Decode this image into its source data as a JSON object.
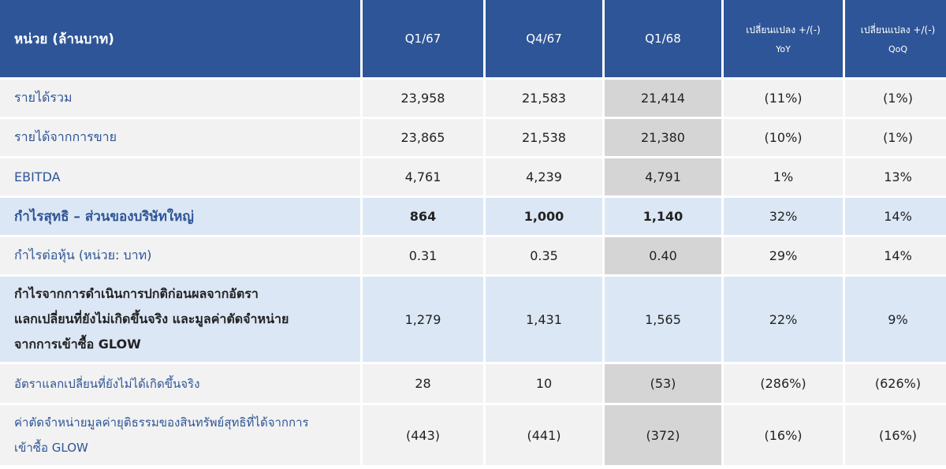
{
  "header": {
    "label": "หน่วย (ล้านบาท)",
    "col1": "Q1/67",
    "col2": "Q4/67",
    "col3": "Q1/68",
    "col4_main": "เปลี่ยนแปลง +/(-)",
    "col4_sub": "YoY",
    "col5_main": "เปลี่ยนแปลง +/(-)",
    "col5_sub": "QoQ"
  },
  "rows": [
    {
      "label": "รายได้รวม",
      "q167": "23,958",
      "q467": "21,583",
      "q168": "21,414",
      "yoy": "(11%)",
      "qoq": "(1%)"
    },
    {
      "label": "รายได้จากการขาย",
      "q167": "23,865",
      "q467": "21,538",
      "q168": "21,380",
      "yoy": "(10%)",
      "qoq": "(1%)"
    },
    {
      "label": "EBITDA",
      "q167": "4,761",
      "q467": "4,239",
      "q168": "4,791",
      "yoy": "1%",
      "qoq": "13%"
    },
    {
      "label": "กำไรสุทธิ – ส่วนของบริษัทใหญ่",
      "q167": "864",
      "q467": "1,000",
      "q168": "1,140",
      "yoy": "32%",
      "qoq": "14%"
    },
    {
      "label": "กำไรต่อหุ้น (หน่วย: บาท)",
      "q167": "0.31",
      "q467": "0.35",
      "q168": "0.40",
      "yoy": "29%",
      "qoq": "14%"
    },
    {
      "label_lines": [
        "กำไรจากการดำเนินการปกติก่อนผลจากอัตรา",
        "แลกเปลี่ยนที่ยังไม่เกิดขึ้นจริง และมูลค่าตัดจำหน่าย",
        "จากการเข้าซื้อ GLOW"
      ],
      "q167": "1,279",
      "q467": "1,431",
      "q168": "1,565",
      "yoy": "22%",
      "qoq": "9%"
    },
    {
      "label": "อัตราแลกเปลี่ยนที่ยังไม่ได้เกิดขึ้นจริง",
      "q167": "28",
      "q467": "10",
      "q168": "(53)",
      "yoy": "(286%)",
      "qoq": "(626%)"
    },
    {
      "label_lines": [
        "ค่าตัดจำหน่ายมูลค่ายุติธรรมของสินทรัพย์สุทธิที่ได้จากการ",
        "เข้าซื้อ GLOW"
      ],
      "q167": "(443)",
      "q467": "(441)",
      "q168": "(372)",
      "yoy": "(16%)",
      "qoq": "(16%)"
    }
  ]
}
